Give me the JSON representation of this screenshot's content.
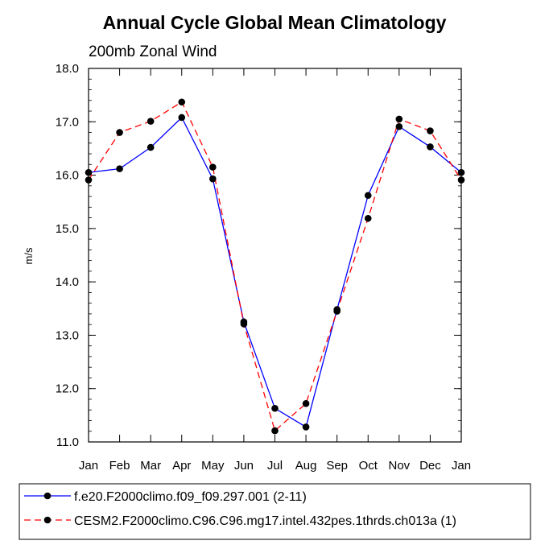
{
  "chart_data": {
    "type": "line",
    "title": "Annual Cycle Global Mean Climatology",
    "subtitle": "200mb Zonal Wind",
    "xlabel": "",
    "ylabel": "m/s",
    "categories": [
      "Jan",
      "Feb",
      "Mar",
      "Apr",
      "May",
      "Jun",
      "Jul",
      "Aug",
      "Sep",
      "Oct",
      "Nov",
      "Dec",
      "Jan"
    ],
    "ylim": [
      11.0,
      18.0
    ],
    "yticks": [
      "11.0",
      "12.0",
      "13.0",
      "14.0",
      "15.0",
      "16.0",
      "17.0",
      "18.0"
    ],
    "grid": false,
    "legend_position": "bottom",
    "series": [
      {
        "name": "f.e20.F2000climo.f09_f09.297.001 (2-11)",
        "color": "#0000ff",
        "dash": "solid",
        "values": [
          16.05,
          16.12,
          16.52,
          17.08,
          15.93,
          13.25,
          11.63,
          11.28,
          13.48,
          15.62,
          16.91,
          16.53,
          16.05
        ]
      },
      {
        "name": "CESM2.F2000climo.C96.C96.mg17.intel.432pes.1thrds.ch013a (1)",
        "color": "#ff0000",
        "dash": "dashed",
        "values": [
          15.91,
          16.8,
          17.01,
          17.37,
          16.15,
          13.21,
          11.21,
          11.72,
          13.45,
          15.19,
          17.05,
          16.83,
          15.91
        ]
      }
    ]
  }
}
